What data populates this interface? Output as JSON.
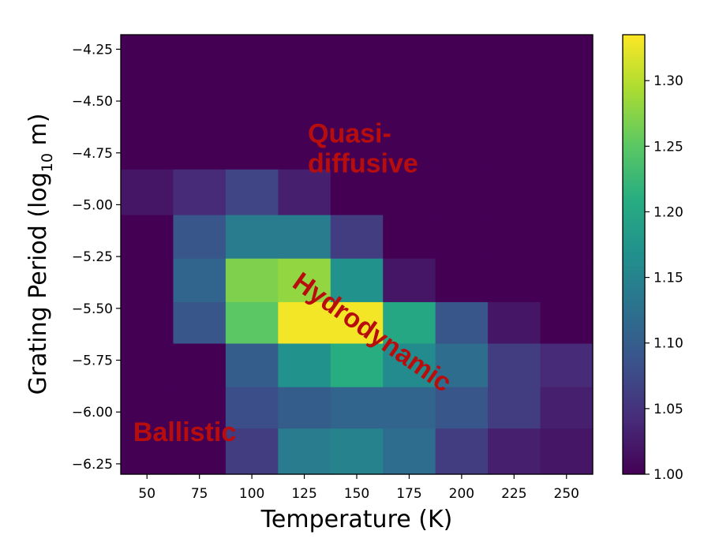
{
  "chart_data": {
    "type": "heatmap",
    "title": "",
    "xlabel": "Temperature (K)",
    "ylabel_prefix": "Grating Period (log",
    "ylabel_sub": "10",
    "ylabel_suffix": " m)",
    "x": [
      50,
      75,
      100,
      125,
      150,
      175,
      200,
      225,
      250
    ],
    "xlim": [
      37.5,
      262.5
    ],
    "x_ticks": [
      50,
      75,
      100,
      125,
      150,
      175,
      200,
      225,
      250
    ],
    "y": [
      -4.25,
      -4.5,
      -4.75,
      -5.0,
      -5.25,
      -5.5,
      -5.75,
      -6.0,
      -6.25
    ],
    "ylim": [
      -6.3,
      -4.18
    ],
    "y_ticks": [
      -4.25,
      -4.5,
      -4.75,
      -5.0,
      -5.25,
      -5.5,
      -5.75,
      -6.0,
      -6.25
    ],
    "y_tick_labels": [
      "−4.25",
      "−4.50",
      "−4.75",
      "−5.00",
      "−5.25",
      "−5.50",
      "−5.75",
      "−6.00",
      "−6.25"
    ],
    "cell_rows": [
      {
        "y": -4.25,
        "y0": -4.18,
        "y1": -4.83,
        "values": [
          1.0,
          1.0,
          1.0,
          1.0,
          1.0,
          1.0,
          1.0,
          1.0,
          1.0
        ]
      },
      {
        "y": -5.0,
        "y0": -4.83,
        "y1": -5.05,
        "values": [
          1.02,
          1.04,
          1.07,
          1.03,
          1.0,
          1.0,
          1.0,
          1.0,
          1.0
        ]
      },
      {
        "y": -5.25,
        "y0": -5.05,
        "y1": -5.26,
        "values": [
          1.0,
          1.09,
          1.14,
          1.14,
          1.06,
          1.0,
          1.0,
          1.0,
          1.0
        ]
      },
      {
        "y": -5.4,
        "y0": -5.26,
        "y1": -5.47,
        "values": [
          1.0,
          1.11,
          1.27,
          1.28,
          1.17,
          1.02,
          1.0,
          1.0,
          1.0
        ]
      },
      {
        "y": -5.6,
        "y0": -5.47,
        "y1": -5.67,
        "values": [
          1.0,
          1.09,
          1.25,
          1.33,
          1.33,
          1.2,
          1.09,
          1.02,
          1.0
        ]
      },
      {
        "y": -5.8,
        "y0": -5.67,
        "y1": -5.88,
        "values": [
          1.0,
          1.0,
          1.1,
          1.17,
          1.21,
          1.16,
          1.12,
          1.06,
          1.04
        ]
      },
      {
        "y": -6.0,
        "y0": -5.88,
        "y1": -6.08,
        "values": [
          1.0,
          1.0,
          1.08,
          1.1,
          1.11,
          1.11,
          1.09,
          1.06,
          1.03
        ]
      },
      {
        "y": -6.2,
        "y0": -6.08,
        "y1": -6.3,
        "values": [
          1.0,
          1.0,
          1.06,
          1.14,
          1.15,
          1.12,
          1.06,
          1.03,
          1.02
        ]
      }
    ],
    "colorbar": {
      "min": 1.0,
      "max": 1.335,
      "ticks": [
        1.0,
        1.05,
        1.1,
        1.15,
        1.2,
        1.25,
        1.3
      ],
      "tick_labels": [
        "1.00",
        "1.05",
        "1.10",
        "1.15",
        "1.20",
        "1.25",
        "1.30"
      ],
      "colormap": "viridis"
    },
    "annotations": [
      {
        "lines": [
          "Quasi-",
          "diffusive"
        ],
        "x": 150,
        "y": -4.7
      },
      {
        "lines": [
          "Hydrodynamic"
        ],
        "x": 155,
        "y": -5.65,
        "rotation": 35
      },
      {
        "lines": [
          "Ballistic"
        ],
        "x": 68,
        "y": -6.14
      }
    ],
    "colors": {
      "annotation_text": "#b80d0d"
    }
  }
}
